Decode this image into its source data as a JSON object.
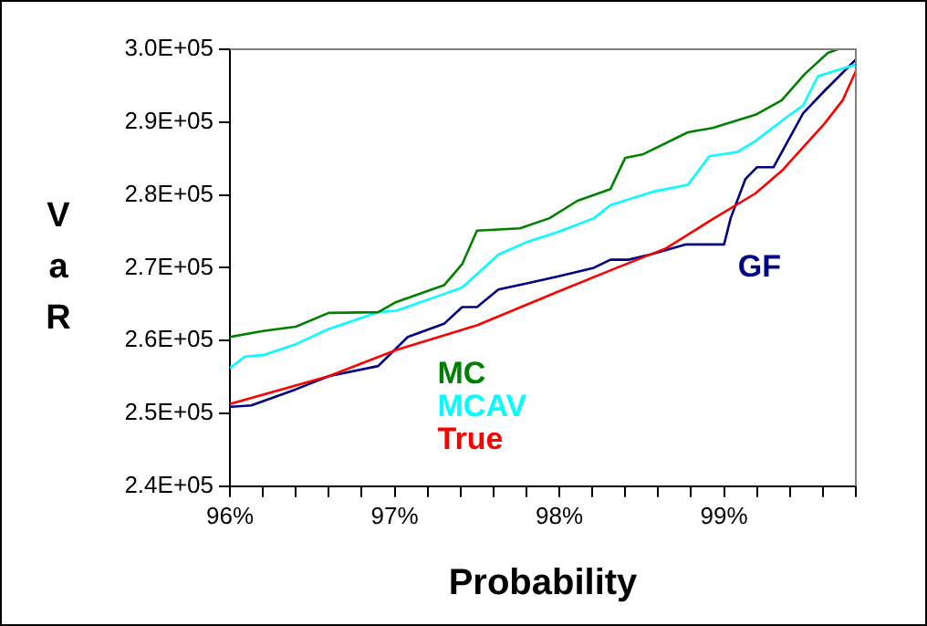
{
  "chart_data": {
    "type": "line",
    "xlabel": "Probability",
    "ylabel": "VaR",
    "xlim": [
      96,
      99.8
    ],
    "xticks": [
      {
        "value": 96,
        "label": "96%"
      },
      {
        "value": 96.2,
        "label": null
      },
      {
        "value": 96.4,
        "label": null
      },
      {
        "value": 96.6,
        "label": null
      },
      {
        "value": 96.8,
        "label": null
      },
      {
        "value": 97,
        "label": "97%"
      },
      {
        "value": 97.2,
        "label": null
      },
      {
        "value": 97.4,
        "label": null
      },
      {
        "value": 97.6,
        "label": null
      },
      {
        "value": 97.8,
        "label": null
      },
      {
        "value": 98,
        "label": "98%"
      },
      {
        "value": 98.2,
        "label": null
      },
      {
        "value": 98.4,
        "label": null
      },
      {
        "value": 98.6,
        "label": null
      },
      {
        "value": 98.8,
        "label": null
      },
      {
        "value": 99,
        "label": "99%"
      },
      {
        "value": 99.2,
        "label": null
      },
      {
        "value": 99.4,
        "label": null
      },
      {
        "value": 99.6,
        "label": null
      },
      {
        "value": 99.8,
        "label": null
      }
    ],
    "ylim": [
      240000,
      300000
    ],
    "yticks": [
      {
        "value": 240000,
        "label": "2.4E+05"
      },
      {
        "value": 250000,
        "label": "2.5E+05"
      },
      {
        "value": 260000,
        "label": "2.6E+05"
      },
      {
        "value": 270000,
        "label": "2.7E+05"
      },
      {
        "value": 280000,
        "label": "2.8E+05"
      },
      {
        "value": 290000,
        "label": "2.9E+05"
      },
      {
        "value": 300000,
        "label": "3.0E+05"
      }
    ],
    "grid": false,
    "legend": false,
    "marker": "none",
    "line_style": "solid",
    "series": [
      {
        "name": "MC",
        "color": "#008000",
        "x": [
          96.0,
          96.2,
          96.4,
          96.6,
          96.9,
          97.01,
          97.3,
          97.41,
          97.5,
          97.76,
          97.94,
          98.11,
          98.31,
          98.4,
          98.51,
          98.78,
          98.93,
          99.19,
          99.35,
          99.49,
          99.63,
          99.69
        ],
        "values": [
          260500,
          261300,
          261900,
          263800,
          263900,
          265300,
          267600,
          270500,
          275100,
          275400,
          276800,
          279200,
          280800,
          285100,
          285600,
          288600,
          289200,
          291000,
          293000,
          296600,
          299500,
          300000
        ]
      },
      {
        "name": "MCAV",
        "color": "#00ffff",
        "x": [
          96.0,
          96.09,
          96.2,
          96.4,
          96.6,
          96.9,
          97.01,
          97.3,
          97.41,
          97.63,
          97.81,
          97.99,
          98.21,
          98.31,
          98.58,
          98.78,
          98.91,
          99.08,
          99.19,
          99.37,
          99.48,
          99.57,
          99.8
        ],
        "values": [
          256200,
          257800,
          258000,
          259500,
          261600,
          263900,
          264100,
          266400,
          267300,
          271800,
          273600,
          274900,
          276800,
          278600,
          280500,
          281400,
          285300,
          285900,
          287400,
          290500,
          292300,
          296300,
          297900
        ]
      },
      {
        "name": "True",
        "color": "#ff0000",
        "x": [
          96.0,
          96.6,
          97.01,
          97.5,
          97.99,
          98.35,
          98.65,
          98.94,
          99.19,
          99.35,
          99.61,
          99.72,
          99.8
        ],
        "values": [
          251300,
          255100,
          258700,
          262100,
          266700,
          270000,
          272700,
          276800,
          280200,
          283300,
          289800,
          293000,
          297000
        ]
      },
      {
        "name": "GF",
        "color": "#000080",
        "x": [
          96.0,
          96.13,
          96.4,
          96.6,
          96.9,
          97.08,
          97.3,
          97.41,
          97.5,
          97.63,
          97.81,
          97.99,
          98.21,
          98.31,
          98.42,
          98.55,
          98.77,
          99.0,
          99.04,
          99.13,
          99.2,
          99.3,
          99.48,
          99.61,
          99.8
        ],
        "values": [
          250900,
          251100,
          253300,
          255100,
          256500,
          260500,
          262300,
          264600,
          264600,
          267000,
          267900,
          268800,
          270000,
          271100,
          271100,
          271800,
          273200,
          273200,
          276800,
          282200,
          283800,
          283800,
          291200,
          294300,
          298600
        ]
      }
    ]
  }
}
